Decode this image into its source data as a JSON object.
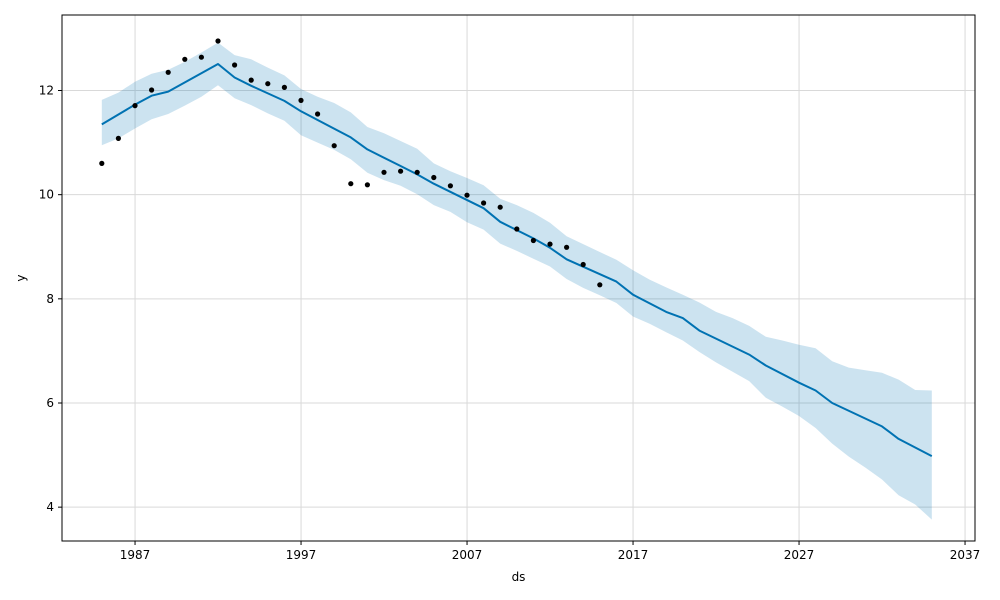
{
  "chart_data": {
    "type": "line",
    "title": "",
    "xlabel": "ds",
    "ylabel": "y",
    "x_is_year": true,
    "xlim": [
      1982.6,
      2037.6
    ],
    "ylim": [
      3.35,
      13.45
    ],
    "x_ticks": [
      1987,
      1997,
      2007,
      2017,
      2027,
      2037
    ],
    "y_ticks": [
      4,
      6,
      8,
      10,
      12
    ],
    "grid": true,
    "legend": "none",
    "colors": {
      "forecast_line": "#0072b2",
      "interval_fill": "#0072b2",
      "observed_points": "#000000",
      "grid": "#d9d9d9",
      "axes": "#000000"
    },
    "series": [
      {
        "kind": "forecast",
        "x": [
          1985,
          1987,
          1988,
          1989,
          1992,
          1993,
          1994,
          1996,
          1997,
          2000,
          2001,
          2003,
          2004,
          2005,
          2008,
          2009,
          2011,
          2012,
          2013,
          2016,
          2017,
          2019,
          2020,
          2021,
          2024,
          2025,
          2027,
          2028,
          2029,
          2032,
          2033,
          2035
        ],
        "values": [
          11.35,
          11.73,
          11.9,
          11.98,
          12.51,
          12.25,
          12.09,
          11.8,
          11.6,
          11.1,
          10.87,
          10.55,
          10.39,
          10.21,
          9.74,
          9.48,
          9.16,
          8.98,
          8.76,
          8.33,
          8.08,
          7.75,
          7.63,
          7.39,
          6.93,
          6.72,
          6.39,
          6.24,
          6.0,
          5.55,
          5.31,
          4.98
        ]
      },
      {
        "kind": "interval",
        "x": [
          1985,
          1986,
          1987,
          1988,
          1989,
          1990,
          1991,
          1992,
          1993,
          1994,
          1995,
          1996,
          1997,
          1998,
          1999,
          2000,
          2001,
          2002,
          2003,
          2004,
          2005,
          2006,
          2007,
          2008,
          2009,
          2010,
          2011,
          2012,
          2013,
          2014,
          2015,
          2016,
          2017,
          2018,
          2019,
          2020,
          2021,
          2022,
          2023,
          2024,
          2025,
          2026,
          2027,
          2028,
          2029,
          2030,
          2031,
          2032,
          2033,
          2034,
          2035
        ],
        "upper": [
          11.82,
          11.96,
          12.17,
          12.32,
          12.4,
          12.55,
          12.73,
          12.92,
          12.68,
          12.6,
          12.44,
          12.29,
          12.03,
          11.88,
          11.76,
          11.58,
          11.3,
          11.18,
          11.03,
          10.88,
          10.6,
          10.45,
          10.32,
          10.18,
          9.92,
          9.8,
          9.65,
          9.46,
          9.2,
          9.05,
          8.9,
          8.75,
          8.55,
          8.37,
          8.22,
          8.08,
          7.93,
          7.75,
          7.63,
          7.48,
          7.27,
          7.2,
          7.12,
          7.05,
          6.8,
          6.68,
          6.63,
          6.58,
          6.45,
          6.25,
          6.24
        ],
        "lower": [
          10.95,
          11.08,
          11.27,
          11.45,
          11.55,
          11.71,
          11.88,
          12.1,
          11.85,
          11.72,
          11.56,
          11.42,
          11.14,
          11.0,
          10.86,
          10.68,
          10.42,
          10.28,
          10.17,
          10.01,
          9.8,
          9.67,
          9.47,
          9.33,
          9.06,
          8.92,
          8.77,
          8.62,
          8.38,
          8.21,
          8.07,
          7.92,
          7.66,
          7.52,
          7.36,
          7.2,
          6.98,
          6.78,
          6.6,
          6.42,
          6.1,
          5.93,
          5.75,
          5.52,
          5.22,
          4.97,
          4.76,
          4.53,
          4.23,
          4.05,
          3.76
        ]
      },
      {
        "kind": "observed",
        "x": [
          1985,
          1986,
          1987,
          1988,
          1989,
          1990,
          1991,
          1992,
          1993,
          1994,
          1995,
          1996,
          1997,
          1998,
          1999,
          2000,
          2001,
          2002,
          2003,
          2004,
          2005,
          2006,
          2007,
          2008,
          2009,
          2010,
          2011,
          2012,
          2013,
          2014,
          2015
        ],
        "values": [
          10.6,
          11.08,
          11.71,
          12.01,
          12.35,
          12.6,
          12.64,
          12.95,
          12.49,
          12.2,
          12.13,
          12.06,
          11.81,
          11.55,
          10.94,
          10.21,
          10.19,
          10.43,
          10.45,
          10.43,
          10.33,
          10.17,
          9.99,
          9.84,
          9.76,
          9.34,
          9.12,
          9.05,
          8.99,
          8.66,
          8.27
        ]
      }
    ]
  }
}
